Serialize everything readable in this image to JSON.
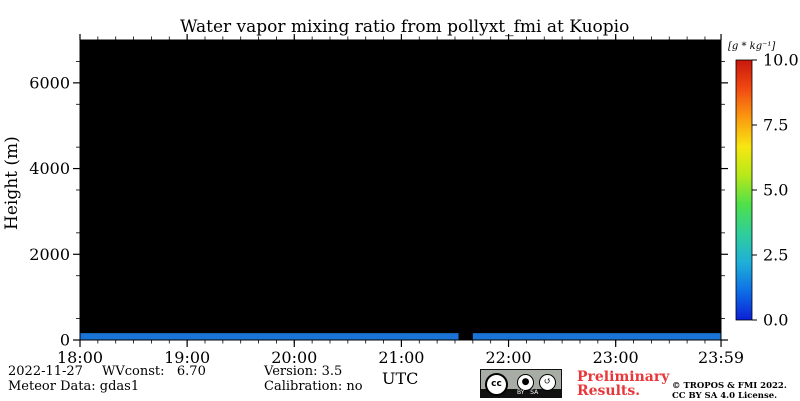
{
  "chart_data": {
    "type": "heatmap",
    "title": "Water vapor mixing ratio from pollyxt_fmi at Kuopio",
    "xlabel": "UTC",
    "ylabel": "Height (m)",
    "x_ticks": [
      "18:00",
      "19:00",
      "20:00",
      "21:00",
      "22:00",
      "23:00",
      "23:59"
    ],
    "x_range_hours": [
      18.0,
      23.983
    ],
    "y_ticks": [
      0,
      2000,
      4000,
      6000
    ],
    "ylim": [
      0,
      7000
    ],
    "colorbar": {
      "unit_label": "[g * kg⁻¹]",
      "ticks": [
        "0.0",
        "2.5",
        "5.0",
        "7.5",
        "10.0"
      ],
      "range": [
        0,
        10
      ],
      "colormap": "jet",
      "colors": [
        "#0b1fd6",
        "#0e6fe6",
        "#1fb0d8",
        "#2fcf9a",
        "#4fe04a",
        "#b6e81a",
        "#f8e712",
        "#fb9a10",
        "#f24a12",
        "#c8170c"
      ]
    },
    "background_color": "#000000",
    "data_color": "#1a74d8",
    "valid_data_band": {
      "height_m": [
        0,
        160
      ],
      "value_approx_g_per_kg": 1.5,
      "gap_utc": [
        "21:32",
        "21:40"
      ]
    }
  },
  "footer": {
    "date": "2022-11-27",
    "wvconst": "WVconst:   6.70",
    "meteor": "Meteor Data: gdas1",
    "version": "Version: 3.5",
    "calibration": "Calibration: no",
    "prelim1": "Preliminary",
    "prelim2": "Results.",
    "copyright1": "© TROPOS & FMI 2022.",
    "copyright2": "CC BY SA 4.0 License.",
    "badge_text": "BY   SA"
  }
}
